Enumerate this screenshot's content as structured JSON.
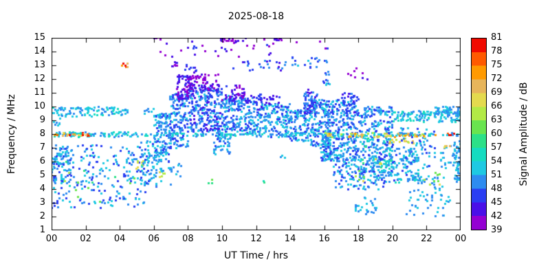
{
  "chart_data": {
    "type": "heatmap",
    "title": "2025-08-18",
    "xlabel": "UT Time / hrs",
    "ylabel": "Frequency / MHz",
    "x_range": [
      0,
      24
    ],
    "y_range": [
      1,
      15
    ],
    "grid": false,
    "seed": 20250818,
    "x_ticks": [
      {
        "value": 0,
        "label": "00"
      },
      {
        "value": 2,
        "label": "02"
      },
      {
        "value": 4,
        "label": "04"
      },
      {
        "value": 6,
        "label": "06"
      },
      {
        "value": 8,
        "label": "08"
      },
      {
        "value": 10,
        "label": "10"
      },
      {
        "value": 12,
        "label": "12"
      },
      {
        "value": 14,
        "label": "14"
      },
      {
        "value": 16,
        "label": "16"
      },
      {
        "value": 18,
        "label": "18"
      },
      {
        "value": 20,
        "label": "20"
      },
      {
        "value": 22,
        "label": "22"
      },
      {
        "value": 24,
        "label": "00"
      }
    ],
    "y_ticks": [
      {
        "value": 1,
        "label": "1"
      },
      {
        "value": 2,
        "label": "2"
      },
      {
        "value": 3,
        "label": "3"
      },
      {
        "value": 4,
        "label": "4"
      },
      {
        "value": 5,
        "label": "5"
      },
      {
        "value": 6,
        "label": "6"
      },
      {
        "value": 7,
        "label": "7"
      },
      {
        "value": 8,
        "label": "8"
      },
      {
        "value": 9,
        "label": "9"
      },
      {
        "value": 10,
        "label": "10"
      },
      {
        "value": 11,
        "label": "11"
      },
      {
        "value": 12,
        "label": "12"
      },
      {
        "value": 13,
        "label": "13"
      },
      {
        "value": 14,
        "label": "14"
      },
      {
        "value": 15,
        "label": "15"
      }
    ],
    "colorbar": {
      "label": "Signal Amplitude / dB",
      "min": 39,
      "max": 81,
      "step": 3,
      "tick_values": [
        39,
        42,
        45,
        48,
        51,
        54,
        57,
        60,
        63,
        66,
        69,
        72,
        75,
        78,
        81
      ],
      "band_colors": [
        "#9400d3",
        "#4a10e8",
        "#2a3ef2",
        "#2e8cf0",
        "#1ec9e2",
        "#15dcc0",
        "#2ce088",
        "#69e44f",
        "#b2ea46",
        "#e4da4e",
        "#e7b55b",
        "#ff9a00",
        "#ff5a00",
        "#f00a00"
      ]
    },
    "clusters": [
      {
        "t": [
          0,
          1.2
        ],
        "f": [
          4.5,
          7.2
        ],
        "n": 70,
        "amp": [
          47,
          54
        ]
      },
      {
        "t": [
          0,
          5.5
        ],
        "f": [
          2.6,
          7.2
        ],
        "n": 230,
        "amp": [
          46,
          54
        ]
      },
      {
        "t": [
          0,
          5.5
        ],
        "f": [
          3.0,
          6.5
        ],
        "n": 14,
        "amp": [
          56,
          66
        ]
      },
      {
        "t": [
          0,
          4.5
        ],
        "f": [
          9.3,
          10.0
        ],
        "n": 100,
        "amp": [
          48,
          55
        ]
      },
      {
        "t": [
          5.4,
          6.0
        ],
        "f": [
          9.5,
          9.9
        ],
        "n": 8,
        "amp": [
          48,
          54
        ]
      },
      {
        "t": [
          0,
          4.5
        ],
        "f": [
          7.8,
          8.15
        ],
        "n": 80,
        "amp": [
          48,
          57
        ]
      },
      {
        "t": [
          0,
          2.2
        ],
        "f": [
          7.88,
          8.1
        ],
        "n": 22,
        "amp": [
          66,
          79
        ]
      },
      {
        "t": [
          0.1,
          0.5
        ],
        "f": [
          8.6,
          9.2
        ],
        "n": 8,
        "amp": [
          48,
          54
        ]
      },
      {
        "t": [
          4.8,
          5.4
        ],
        "f": [
          5.2,
          6.3
        ],
        "n": 8,
        "amp": [
          62,
          69
        ]
      },
      {
        "t": [
          5.2,
          6.2
        ],
        "f": [
          4.2,
          7.5
        ],
        "n": 70,
        "amp": [
          47,
          54
        ]
      },
      {
        "t": [
          6.0,
          7.0
        ],
        "f": [
          6.0,
          9.5
        ],
        "n": 140,
        "amp": [
          46,
          54
        ]
      },
      {
        "t": [
          6.2,
          7.6
        ],
        "f": [
          4.3,
          6.0
        ],
        "n": 20,
        "amp": [
          48,
          54
        ]
      },
      {
        "t": [
          6.3,
          6.6
        ],
        "f": [
          4.8,
          5.3
        ],
        "n": 5,
        "amp": [
          62,
          69
        ]
      },
      {
        "t": [
          6.9,
          8.0
        ],
        "f": [
          7.0,
          11.0
        ],
        "n": 160,
        "amp": [
          45,
          53
        ]
      },
      {
        "t": [
          7.3,
          8.3
        ],
        "f": [
          10.5,
          12.3
        ],
        "n": 90,
        "amp": [
          39,
          46
        ]
      },
      {
        "t": [
          8.0,
          10.0
        ],
        "f": [
          8.2,
          11.6
        ],
        "n": 260,
        "amp": [
          44,
          52
        ]
      },
      {
        "t": [
          8.0,
          9.8
        ],
        "f": [
          11.2,
          12.4
        ],
        "n": 70,
        "amp": [
          39,
          45
        ]
      },
      {
        "t": [
          9.5,
          10.5
        ],
        "f": [
          6.5,
          8.2
        ],
        "n": 60,
        "amp": [
          47,
          54
        ]
      },
      {
        "t": [
          10,
          12
        ],
        "f": [
          8.0,
          10.8
        ],
        "n": 200,
        "amp": [
          45,
          53
        ]
      },
      {
        "t": [
          10,
          11.3
        ],
        "f": [
          10.4,
          11.6
        ],
        "n": 40,
        "amp": [
          40,
          46
        ]
      },
      {
        "t": [
          11.3,
          12.3
        ],
        "f": [
          10.3,
          11.0
        ],
        "n": 15,
        "amp": [
          42,
          48
        ]
      },
      {
        "t": [
          12,
          14
        ],
        "f": [
          7.8,
          10.2
        ],
        "n": 170,
        "amp": [
          46,
          54
        ]
      },
      {
        "t": [
          12,
          13.5
        ],
        "f": [
          9.8,
          10.8
        ],
        "n": 30,
        "amp": [
          42,
          47
        ]
      },
      {
        "t": [
          14,
          15.2
        ],
        "f": [
          7.5,
          9.8
        ],
        "n": 100,
        "amp": [
          46,
          54
        ]
      },
      {
        "t": [
          14.8,
          15.6
        ],
        "f": [
          9.5,
          11.3
        ],
        "n": 70,
        "amp": [
          42,
          50
        ]
      },
      {
        "t": [
          15.2,
          16.3
        ],
        "f": [
          7.0,
          10.5
        ],
        "n": 120,
        "amp": [
          45,
          53
        ]
      },
      {
        "t": [
          15.8,
          16.4
        ],
        "f": [
          6.0,
          8.0
        ],
        "n": 60,
        "amp": [
          47,
          54
        ]
      },
      {
        "t": [
          16,
          18.2
        ],
        "f": [
          6.0,
          10.5
        ],
        "n": 300,
        "amp": [
          45,
          53
        ]
      },
      {
        "t": [
          16.5,
          19.5
        ],
        "f": [
          4.0,
          6.5
        ],
        "n": 150,
        "amp": [
          46,
          54
        ]
      },
      {
        "t": [
          17,
          18
        ],
        "f": [
          9.5,
          11.0
        ],
        "n": 40,
        "amp": [
          44,
          50
        ]
      },
      {
        "t": [
          17.1,
          18.6
        ],
        "f": [
          11.8,
          13.2
        ],
        "n": 8,
        "amp": [
          39,
          46
        ]
      },
      {
        "t": [
          17.5,
          18.5
        ],
        "f": [
          4.6,
          5.4
        ],
        "n": 6,
        "amp": [
          60,
          69
        ]
      },
      {
        "t": [
          17.8,
          19.2
        ],
        "f": [
          2.2,
          3.4
        ],
        "n": 25,
        "amp": [
          48,
          54
        ]
      },
      {
        "t": [
          18,
          20
        ],
        "f": [
          5.0,
          9.0
        ],
        "n": 200,
        "amp": [
          46,
          54
        ]
      },
      {
        "t": [
          18,
          20
        ],
        "f": [
          5.5,
          8.5
        ],
        "n": 18,
        "amp": [
          54,
          60
        ]
      },
      {
        "t": [
          18.3,
          20
        ],
        "f": [
          9.2,
          10.0
        ],
        "n": 60,
        "amp": [
          46,
          53
        ]
      },
      {
        "t": [
          19,
          19.4
        ],
        "f": [
          5.8,
          6.2
        ],
        "n": 4,
        "amp": [
          62,
          69
        ]
      },
      {
        "t": [
          19.5,
          21.5
        ],
        "f": [
          4.5,
          7.0
        ],
        "n": 110,
        "amp": [
          47,
          55
        ]
      },
      {
        "t": [
          19.8,
          21.2
        ],
        "f": [
          7.35,
          7.7
        ],
        "n": 18,
        "amp": [
          63,
          72
        ]
      },
      {
        "t": [
          20,
          24
        ],
        "f": [
          8.9,
          9.7
        ],
        "n": 120,
        "amp": [
          48,
          56
        ]
      },
      {
        "t": [
          20.3,
          21.3
        ],
        "f": [
          7.9,
          8.05
        ],
        "n": 10,
        "amp": [
          74,
          81
        ]
      },
      {
        "t": [
          20.5,
          22.5
        ],
        "f": [
          5.5,
          8.5
        ],
        "n": 80,
        "amp": [
          46,
          53
        ]
      },
      {
        "t": [
          20.8,
          23.5
        ],
        "f": [
          2.0,
          3.5
        ],
        "n": 30,
        "amp": [
          48,
          54
        ]
      },
      {
        "t": [
          21,
          23
        ],
        "f": [
          3.5,
          5.0
        ],
        "n": 40,
        "amp": [
          48,
          54
        ]
      },
      {
        "t": [
          21.5,
          22.8
        ],
        "f": [
          4.2,
          5.2
        ],
        "n": 8,
        "amp": [
          60,
          69
        ]
      },
      {
        "t": [
          22.5,
          24
        ],
        "f": [
          9.3,
          10.0
        ],
        "n": 50,
        "amp": [
          48,
          54
        ]
      },
      {
        "t": [
          22.8,
          24
        ],
        "f": [
          5.5,
          7.2
        ],
        "n": 30,
        "amp": [
          48,
          54
        ]
      },
      {
        "t": [
          23.0,
          23.4
        ],
        "f": [
          6.8,
          7.2
        ],
        "n": 4,
        "amp": [
          66,
          72
        ]
      },
      {
        "t": [
          23.2,
          23.6
        ],
        "f": [
          7.9,
          8.05
        ],
        "n": 6,
        "amp": [
          75,
          81
        ]
      },
      {
        "t": [
          23.6,
          24
        ],
        "f": [
          4.5,
          7.5
        ],
        "n": 40,
        "amp": [
          48,
          54
        ]
      },
      {
        "t": [
          4.5,
          24
        ],
        "f": [
          7.85,
          8.1
        ],
        "n": 140,
        "amp": [
          48,
          57
        ]
      },
      {
        "t": [
          16,
          22.5
        ],
        "f": [
          7.8,
          8.1
        ],
        "n": 55,
        "amp": [
          63,
          75
        ]
      },
      {
        "t": [
          5.8,
          16.5
        ],
        "f": [
          13.6,
          15.2
        ],
        "n": 40,
        "amp": [
          39,
          46
        ]
      },
      {
        "t": [
          9.9,
          11.0
        ],
        "f": [
          14.7,
          15.15
        ],
        "n": 18,
        "amp": [
          39,
          45
        ]
      },
      {
        "t": [
          13.0,
          13.5
        ],
        "f": [
          14.8,
          15.1
        ],
        "n": 8,
        "amp": [
          39,
          45
        ]
      },
      {
        "t": [
          6.0,
          6.4
        ],
        "f": [
          14.8,
          15.1
        ],
        "n": 5,
        "amp": [
          39,
          45
        ]
      },
      {
        "t": [
          8.2,
          8.5
        ],
        "f": [
          14.2,
          14.5
        ],
        "n": 3,
        "amp": [
          42,
          48
        ]
      },
      {
        "t": [
          4.1,
          4.5
        ],
        "f": [
          12.9,
          13.2
        ],
        "n": 6,
        "amp": [
          70,
          81
        ]
      },
      {
        "t": [
          7.0,
          7.4
        ],
        "f": [
          12.9,
          13.3
        ],
        "n": 8,
        "amp": [
          39,
          46
        ]
      },
      {
        "t": [
          7.8,
          8.6
        ],
        "f": [
          12.5,
          13.1
        ],
        "n": 10,
        "amp": [
          42,
          48
        ]
      },
      {
        "t": [
          10.5,
          13.8
        ],
        "f": [
          12.6,
          13.4
        ],
        "n": 25,
        "amp": [
          42,
          50
        ]
      },
      {
        "t": [
          14.0,
          16.2
        ],
        "f": [
          12.8,
          13.6
        ],
        "n": 20,
        "amp": [
          45,
          52
        ]
      },
      {
        "t": [
          15.9,
          16.3
        ],
        "f": [
          11.5,
          12.6
        ],
        "n": 12,
        "amp": [
          45,
          52
        ]
      },
      {
        "t": [
          9.0,
          9.6
        ],
        "f": [
          4.4,
          4.8
        ],
        "n": 3,
        "amp": [
          56,
          63
        ]
      },
      {
        "t": [
          12.4,
          12.7
        ],
        "f": [
          4.4,
          4.7
        ],
        "n": 2,
        "amp": [
          54,
          60
        ]
      },
      {
        "t": [
          13.4,
          13.7
        ],
        "f": [
          6.2,
          6.5
        ],
        "n": 3,
        "amp": [
          48,
          54
        ]
      }
    ]
  }
}
